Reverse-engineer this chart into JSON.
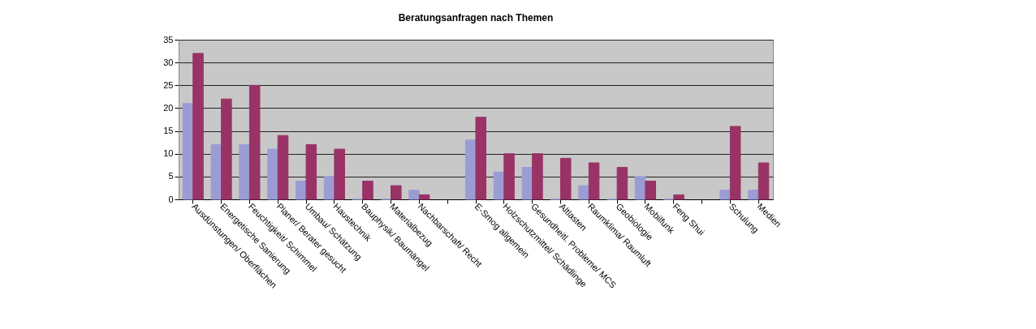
{
  "chart_data": {
    "type": "bar",
    "title": "Beratungsanfragen nach Themen",
    "categories": [
      "Ausdünstungen/ Oberflächen",
      "Energetische Sanierung",
      "Feuchtigkeit/ Schimmel",
      "Planer/ Berater gesucht",
      "Umbau/ Schätzung",
      "Haustechnik",
      "Bauphysik/ Baumängel",
      "Materialbezug",
      "Nachbarschaft/ Recht",
      null,
      "E-Smog allgemein",
      "Holzschutzmittel/ Schädlinge",
      "Gesundheitl. Probleme/ MCS",
      "Altlasten",
      "Raumklima/ Raumluft",
      "Geobiologie",
      "Mobilfunk",
      "Feng Shui",
      null,
      "Schulung",
      "Medien"
    ],
    "series": [
      {
        "color": "#9c9cd4",
        "values": [
          21,
          12,
          12,
          11,
          4,
          5,
          0,
          0,
          2,
          null,
          13,
          6,
          7,
          0,
          3,
          0,
          5,
          0,
          null,
          2,
          2
        ]
      },
      {
        "color": "#993366",
        "values": [
          32,
          22,
          25,
          14,
          12,
          11,
          4,
          3,
          1,
          null,
          18,
          10,
          10,
          9,
          8,
          7,
          4,
          1,
          null,
          16,
          8
        ]
      }
    ],
    "ylim": [
      0,
      35
    ],
    "yticks": [
      0,
      5,
      10,
      15,
      20,
      25,
      30,
      35
    ],
    "grid": "y",
    "legend": false
  }
}
